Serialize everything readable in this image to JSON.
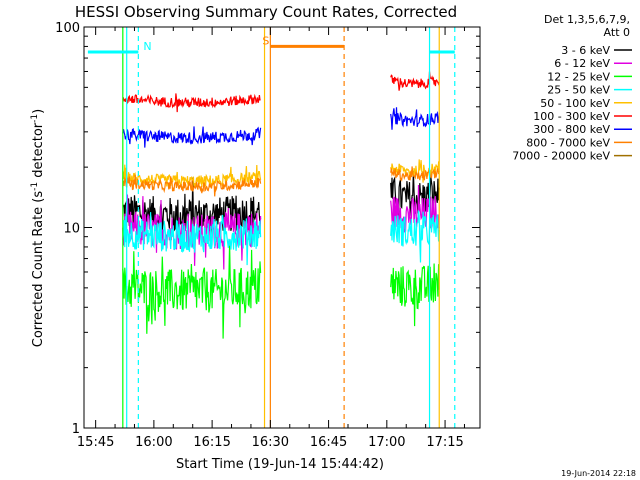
{
  "chart_data": {
    "type": "line",
    "title": "HESSI Observing Summary Count Rates, Corrected",
    "xlabel": "Start Time (19-Jun-14 15:44:42)",
    "ylabel_main": "Corrected Count Rate (s",
    "ylabel_sup1": "-1",
    "ylabel_mid": " detector",
    "ylabel_sup2": "-1",
    "ylabel_end": ")",
    "y_scale": "log",
    "ylim": [
      1,
      100
    ],
    "xlim": [
      "15:42:00",
      "17:24:00"
    ],
    "x_ticks": [
      "15:45",
      "16:00",
      "16:15",
      "16:30",
      "16:45",
      "17:00",
      "17:15"
    ],
    "y_ticks": [
      "1",
      "10",
      "100"
    ],
    "legend_header": [
      "Det 1,3,5,6,7,9,",
      "Att 0"
    ],
    "legend_position": "outside-right",
    "timestamp": "19-Jun-2014 22:18",
    "series": [
      {
        "name": "3 - 6 keV",
        "color": "#000000",
        "segments": [
          {
            "start": "15:52:00",
            "end": "16:27:30",
            "baseline": 11.5,
            "noise": 0.18
          },
          {
            "start": "17:01:00",
            "end": "17:13:30",
            "baseline": 14.0,
            "noise": 0.18
          }
        ]
      },
      {
        "name": "6 - 12 keV",
        "color": "#e000e0",
        "segments": [
          {
            "start": "15:52:00",
            "end": "16:27:30",
            "baseline": 9.5,
            "noise": 0.18
          },
          {
            "start": "17:01:00",
            "end": "17:13:30",
            "baseline": 11.5,
            "noise": 0.18
          }
        ]
      },
      {
        "name": "12 - 25 keV",
        "color": "#00ff00",
        "segments": [
          {
            "start": "15:52:00",
            "end": "16:27:30",
            "baseline": 4.8,
            "noise": 0.22
          },
          {
            "start": "17:01:00",
            "end": "17:13:30",
            "baseline": 5.0,
            "noise": 0.22
          }
        ]
      },
      {
        "name": "25 - 50 keV",
        "color": "#00ffff",
        "segments": [
          {
            "start": "15:52:00",
            "end": "16:27:30",
            "baseline": 9.0,
            "noise": 0.16
          },
          {
            "start": "17:01:00",
            "end": "17:13:30",
            "baseline": 9.5,
            "noise": 0.16
          }
        ]
      },
      {
        "name": "50 - 100 keV",
        "color": "#ffc000",
        "segments": [
          {
            "start": "15:52:00",
            "end": "16:27:30",
            "baseline": 17.0,
            "noise": 0.06
          },
          {
            "start": "17:01:00",
            "end": "17:13:30",
            "baseline": 19.0,
            "noise": 0.06
          }
        ]
      },
      {
        "name": "100 - 300 keV",
        "color": "#ff0000",
        "segments": [
          {
            "start": "15:52:00",
            "end": "16:27:30",
            "baseline": 42.0,
            "noise": 0.05
          },
          {
            "start": "17:01:00",
            "end": "17:13:30",
            "baseline": 52.0,
            "noise": 0.05
          }
        ]
      },
      {
        "name": "300 - 800 keV",
        "color": "#0000ff",
        "segments": [
          {
            "start": "15:52:00",
            "end": "16:27:30",
            "baseline": 28.0,
            "noise": 0.06
          },
          {
            "start": "17:01:00",
            "end": "17:13:30",
            "baseline": 34.0,
            "noise": 0.06
          }
        ]
      },
      {
        "name": "800 - 7000 keV",
        "color": "#ff8000",
        "segments": [
          {
            "start": "15:52:00",
            "end": "16:27:30",
            "baseline": 16.0,
            "noise": 0.05
          },
          {
            "start": "17:01:00",
            "end": "17:13:30",
            "baseline": 18.0,
            "noise": 0.05
          }
        ]
      },
      {
        "name": "7000 - 20000 keV",
        "color": "#a07000",
        "segments": []
      }
    ],
    "annotations": [
      {
        "label": "N",
        "color": "#00ffff",
        "time": "15:56:00",
        "flag_start": "15:43:00",
        "flag_end": "15:56:00",
        "y": 75
      },
      {
        "label": "",
        "color": "#00ffff",
        "time": "17:17:30",
        "flag_start": "17:11:00",
        "flag_end": "17:17:30",
        "y": 75
      },
      {
        "label": "S",
        "color": "#ff8000",
        "time": "16:49:00",
        "flag_start": "16:30:00",
        "flag_end": "16:49:00",
        "y": 80
      }
    ],
    "vertical_lines": [
      {
        "time": "15:52:00",
        "color": "#00ff00",
        "style": "solid"
      },
      {
        "time": "15:53:00",
        "color": "#00ffff",
        "style": "solid"
      },
      {
        "time": "15:56:00",
        "color": "#00ffff",
        "style": "dashed"
      },
      {
        "time": "16:28:30",
        "color": "#ffc000",
        "style": "solid"
      },
      {
        "time": "16:30:00",
        "color": "#ff8000",
        "style": "solid"
      },
      {
        "time": "16:49:00",
        "color": "#ff8000",
        "style": "dashed"
      },
      {
        "time": "17:11:00",
        "color": "#00ffff",
        "style": "solid"
      },
      {
        "time": "17:13:30",
        "color": "#ffc000",
        "style": "solid"
      },
      {
        "time": "17:17:30",
        "color": "#00ffff",
        "style": "dashed"
      }
    ]
  }
}
